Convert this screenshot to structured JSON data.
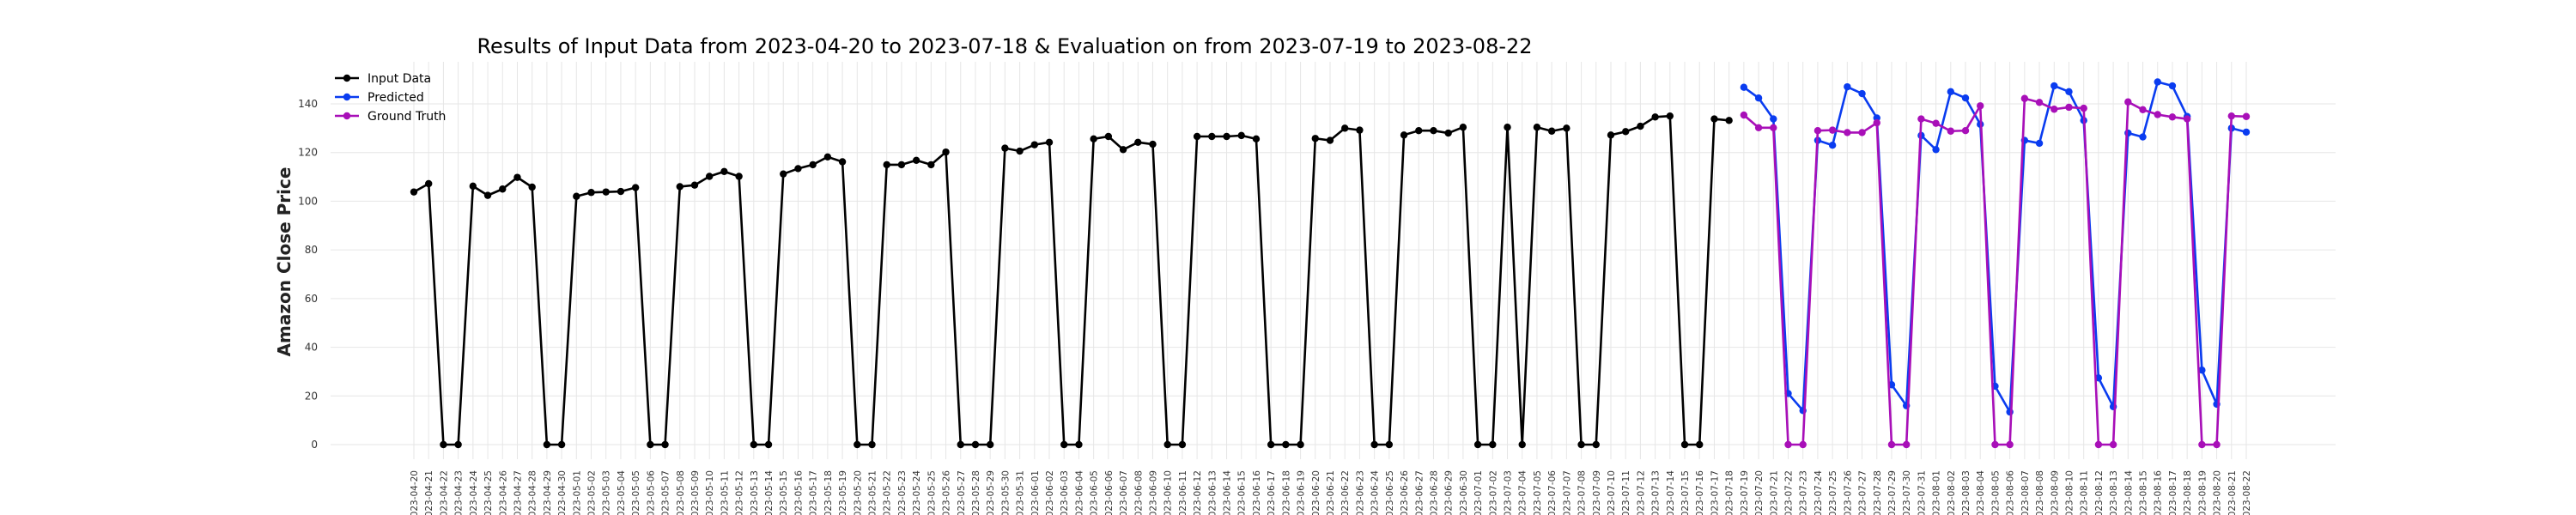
{
  "chart_data": {
    "type": "line",
    "title": "Results of Input Data from 2023-04-20 to 2023-07-18 & Evaluation on from 2023-07-19 to 2023-08-22",
    "xlabel": "",
    "ylabel": "Amazon Close Price",
    "ylim": [
      -10,
      155
    ],
    "yticks": [
      0,
      20,
      40,
      60,
      80,
      100,
      120,
      140
    ],
    "grid": true,
    "legend_position": "top-left",
    "colors": {
      "input": "#000000",
      "predicted": "#0a3cf0",
      "ground_truth": "#a80fb8"
    },
    "x": [
      "2023-04-20",
      "2023-04-21",
      "2023-04-22",
      "2023-04-23",
      "2023-04-24",
      "2023-04-25",
      "2023-04-26",
      "2023-04-27",
      "2023-04-28",
      "2023-04-29",
      "2023-04-30",
      "2023-05-01",
      "2023-05-02",
      "2023-05-03",
      "2023-05-04",
      "2023-05-05",
      "2023-05-06",
      "2023-05-07",
      "2023-05-08",
      "2023-05-09",
      "2023-05-10",
      "2023-05-11",
      "2023-05-12",
      "2023-05-13",
      "2023-05-14",
      "2023-05-15",
      "2023-05-16",
      "2023-05-17",
      "2023-05-18",
      "2023-05-19",
      "2023-05-20",
      "2023-05-21",
      "2023-05-22",
      "2023-05-23",
      "2023-05-24",
      "2023-05-25",
      "2023-05-26",
      "2023-05-27",
      "2023-05-28",
      "2023-05-29",
      "2023-05-30",
      "2023-05-31",
      "2023-06-01",
      "2023-06-02",
      "2023-06-03",
      "2023-06-04",
      "2023-06-05",
      "2023-06-06",
      "2023-06-07",
      "2023-06-08",
      "2023-06-09",
      "2023-06-10",
      "2023-06-11",
      "2023-06-12",
      "2023-06-13",
      "2023-06-14",
      "2023-06-15",
      "2023-06-16",
      "2023-06-17",
      "2023-06-18",
      "2023-06-19",
      "2023-06-20",
      "2023-06-21",
      "2023-06-22",
      "2023-06-23",
      "2023-06-24",
      "2023-06-25",
      "2023-06-26",
      "2023-06-27",
      "2023-06-28",
      "2023-06-29",
      "2023-06-30",
      "2023-07-01",
      "2023-07-02",
      "2023-07-03",
      "2023-07-04",
      "2023-07-05",
      "2023-07-06",
      "2023-07-07",
      "2023-07-08",
      "2023-07-09",
      "2023-07-10",
      "2023-07-11",
      "2023-07-12",
      "2023-07-13",
      "2023-07-14",
      "2023-07-15",
      "2023-07-16",
      "2023-07-17",
      "2023-07-18",
      "2023-07-19",
      "2023-07-20",
      "2023-07-21",
      "2023-07-22",
      "2023-07-23",
      "2023-07-24",
      "2023-07-25",
      "2023-07-26",
      "2023-07-27",
      "2023-07-28",
      "2023-07-29",
      "2023-07-30",
      "2023-07-31",
      "2023-08-01",
      "2023-08-02",
      "2023-08-03",
      "2023-08-04",
      "2023-08-05",
      "2023-08-06",
      "2023-08-07",
      "2023-08-08",
      "2023-08-09",
      "2023-08-10",
      "2023-08-11",
      "2023-08-12",
      "2023-08-13",
      "2023-08-14",
      "2023-08-15",
      "2023-08-16",
      "2023-08-17",
      "2023-08-18",
      "2023-08-19",
      "2023-08-20",
      "2023-08-21",
      "2023-08-22"
    ],
    "series": [
      {
        "name": "Input Data",
        "values": [
          103.8,
          107.2,
          0,
          0,
          106.2,
          102.4,
          105.0,
          109.8,
          105.8,
          0,
          0,
          102.0,
          103.6,
          103.8,
          104.0,
          105.6,
          0,
          0,
          106.0,
          106.6,
          110.2,
          112.2,
          110.2,
          0,
          0,
          111.2,
          113.4,
          115.0,
          118.2,
          116.2,
          0,
          0,
          115.0,
          115.0,
          116.8,
          115.0,
          120.2,
          0,
          0,
          0,
          121.8,
          120.6,
          123.2,
          124.2,
          0,
          0,
          125.6,
          126.6,
          121.2,
          124.2,
          123.4,
          0,
          0,
          126.6,
          126.6,
          126.6,
          127.0,
          125.6,
          0,
          0,
          0,
          125.8,
          125.0,
          130.0,
          129.2,
          0,
          0,
          127.2,
          129.0,
          129.0,
          128.0,
          130.4,
          0,
          0,
          130.4,
          0,
          130.4,
          128.8,
          130.0,
          0,
          0,
          127.2,
          128.6,
          130.8,
          134.6,
          135.0,
          0,
          0,
          133.8,
          133.2,
          null,
          null,
          null,
          null,
          null,
          null,
          null,
          null,
          null,
          null,
          null,
          null,
          null,
          null,
          null,
          null,
          null,
          null,
          null,
          null,
          null,
          null,
          null,
          null,
          null,
          null,
          null,
          null,
          null,
          null,
          null,
          null,
          null,
          null,
          null
        ]
      },
      {
        "name": "Predicted",
        "values": [
          null,
          null,
          null,
          null,
          null,
          null,
          null,
          null,
          null,
          null,
          null,
          null,
          null,
          null,
          null,
          null,
          null,
          null,
          null,
          null,
          null,
          null,
          null,
          null,
          null,
          null,
          null,
          null,
          null,
          null,
          null,
          null,
          null,
          null,
          null,
          null,
          null,
          null,
          null,
          null,
          null,
          null,
          null,
          null,
          null,
          null,
          null,
          null,
          null,
          null,
          null,
          null,
          null,
          null,
          null,
          null,
          null,
          null,
          null,
          null,
          null,
          null,
          null,
          null,
          null,
          null,
          null,
          null,
          null,
          null,
          null,
          null,
          null,
          null,
          null,
          null,
          null,
          null,
          null,
          null,
          null,
          null,
          null,
          null,
          null,
          null,
          null,
          null,
          null,
          null,
          146.8,
          142.4,
          133.8,
          21.0,
          14.0,
          125.0,
          123.0,
          147.0,
          144.2,
          134.2,
          24.6,
          16.0,
          127.0,
          121.2,
          145.0,
          142.4,
          131.6,
          24.0,
          13.4,
          125.0,
          123.8,
          147.4,
          145.0,
          133.2,
          27.4,
          15.6,
          128.0,
          126.4,
          149.0,
          147.4,
          134.8,
          30.6,
          16.6,
          130.0,
          128.4
        ]
      },
      {
        "name": "Ground Truth",
        "values": [
          null,
          null,
          null,
          null,
          null,
          null,
          null,
          null,
          null,
          null,
          null,
          null,
          null,
          null,
          null,
          null,
          null,
          null,
          null,
          null,
          null,
          null,
          null,
          null,
          null,
          null,
          null,
          null,
          null,
          null,
          null,
          null,
          null,
          null,
          null,
          null,
          null,
          null,
          null,
          null,
          null,
          null,
          null,
          null,
          null,
          null,
          null,
          null,
          null,
          null,
          null,
          null,
          null,
          null,
          null,
          null,
          null,
          null,
          null,
          null,
          null,
          null,
          null,
          null,
          null,
          null,
          null,
          null,
          null,
          null,
          null,
          null,
          null,
          null,
          null,
          null,
          null,
          null,
          null,
          null,
          null,
          null,
          null,
          null,
          null,
          null,
          null,
          null,
          null,
          null,
          135.4,
          130.2,
          130.2,
          0,
          0,
          129.0,
          129.2,
          128.2,
          128.2,
          132.2,
          0,
          0,
          133.8,
          132.0,
          128.8,
          129.0,
          139.2,
          0,
          0,
          142.2,
          140.6,
          137.8,
          138.6,
          138.2,
          0,
          0,
          140.8,
          137.6,
          135.6,
          134.6,
          133.8,
          0,
          0,
          135.0,
          134.8
        ]
      }
    ]
  }
}
